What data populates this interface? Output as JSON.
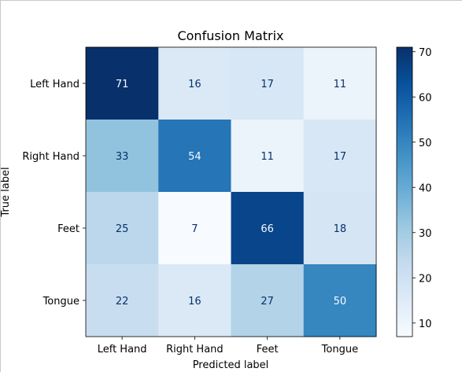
{
  "chart_data": {
    "type": "heatmap",
    "title": "Confusion Matrix",
    "xlabel": "Predicted label",
    "ylabel": "True label",
    "x_categories": [
      "Left Hand",
      "Right Hand",
      "Feet",
      "Tongue"
    ],
    "y_categories": [
      "Left Hand",
      "Right Hand",
      "Feet",
      "Tongue"
    ],
    "values": [
      [
        71,
        16,
        17,
        11
      ],
      [
        33,
        54,
        11,
        17
      ],
      [
        25,
        7,
        66,
        18
      ],
      [
        22,
        16,
        27,
        50
      ]
    ],
    "colormap": "Blues",
    "colorbar": {
      "range": [
        7,
        71
      ],
      "ticks": [
        10,
        20,
        30,
        40,
        50,
        60,
        70
      ],
      "tick_labels": [
        "10",
        "20",
        "30",
        "40",
        "50",
        "60",
        "70"
      ]
    },
    "grid": false
  }
}
